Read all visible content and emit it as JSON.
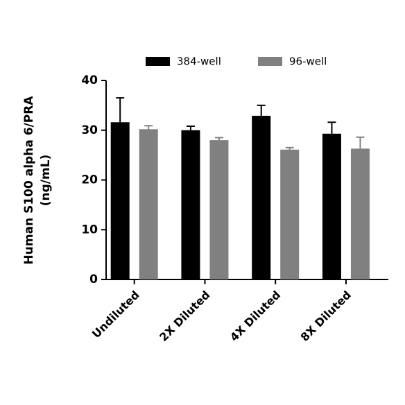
{
  "chart_data": {
    "type": "bar",
    "ylabel": [
      "Human S100 alpha 6/PRA",
      "(ng/mL)"
    ],
    "categories": [
      "Undiluted",
      "2X Diluted",
      "4X Diluted",
      "8X Diluted"
    ],
    "series": [
      {
        "name": "384-well",
        "color": "#000000",
        "values": [
          31.6,
          30.0,
          32.9,
          29.3
        ],
        "errors": [
          4.9,
          0.8,
          2.1,
          2.3
        ]
      },
      {
        "name": "96-well",
        "color": "#808080",
        "values": [
          30.2,
          28.0,
          26.1,
          26.3
        ],
        "errors": [
          0.7,
          0.5,
          0.4,
          2.3
        ]
      }
    ],
    "ylim": [
      0,
      40
    ],
    "yticks": [
      0,
      10,
      20,
      30,
      40
    ],
    "legend": "top"
  }
}
